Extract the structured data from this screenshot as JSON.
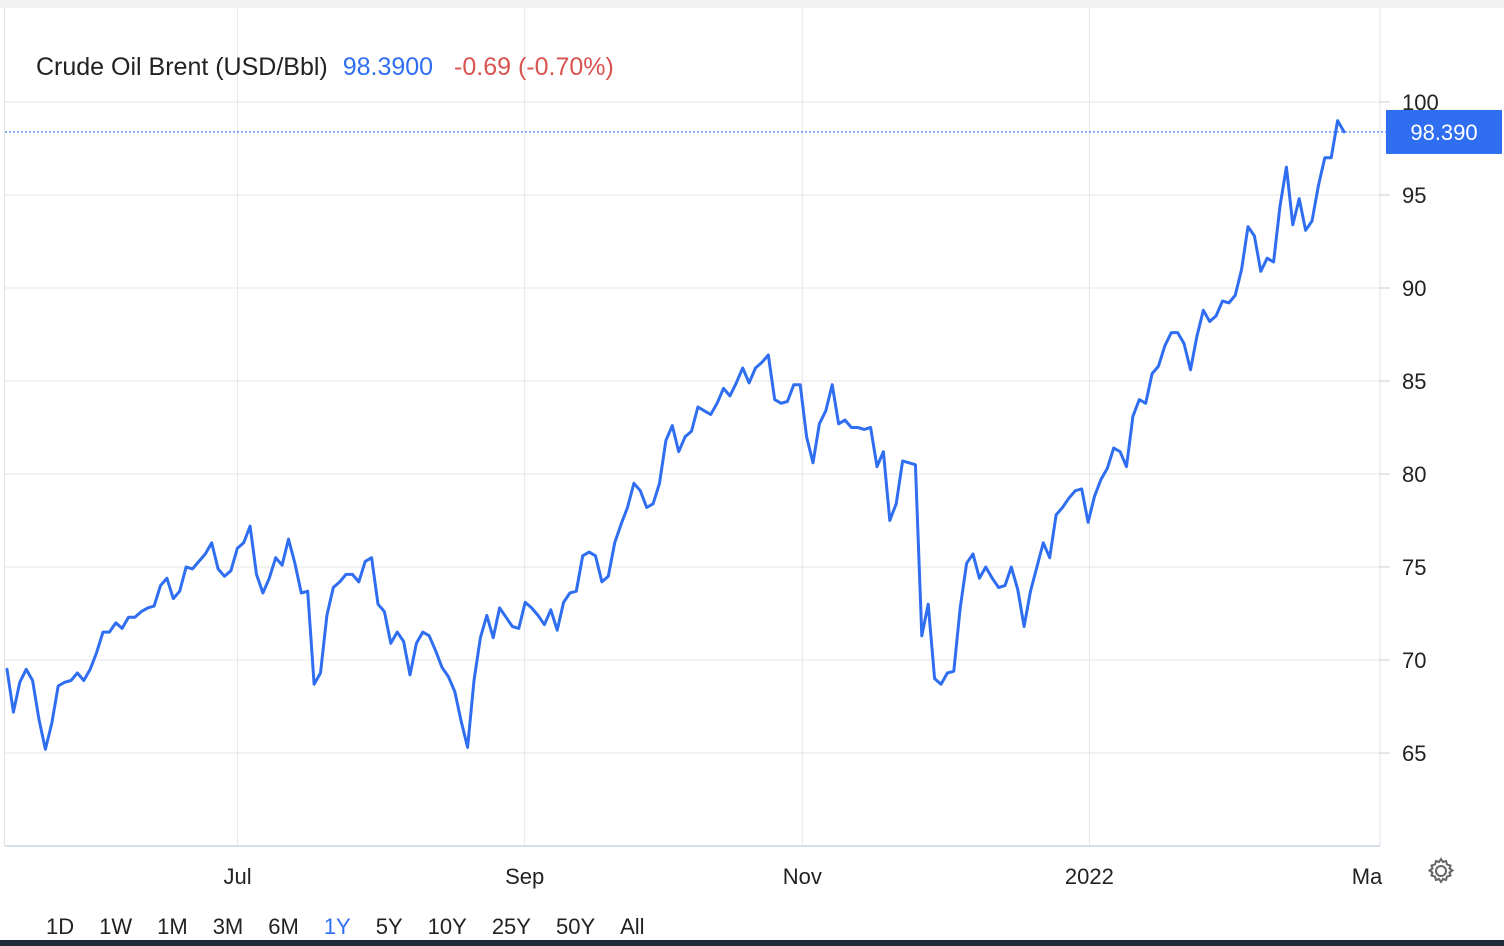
{
  "header": {
    "instrument": "Crude Oil Brent (USD/Bbl)",
    "price": "98.3900",
    "change": "-0.69 (-0.70%)"
  },
  "last_price_label": "98.390",
  "colors": {
    "line": "#2f6ef0",
    "price": "#2f6ef0",
    "change": "#d9534f",
    "badge": "#2f6ef0",
    "grid": "#e6e6e6"
  },
  "ranges": [
    "1D",
    "1W",
    "1M",
    "3M",
    "6M",
    "1Y",
    "5Y",
    "10Y",
    "25Y",
    "50Y",
    "All"
  ],
  "active_range": "1Y",
  "settings_icon": "gear-icon",
  "chart_data": {
    "type": "line",
    "title": "Crude Oil Brent (USD/Bbl)",
    "xlabel": "",
    "ylabel": "",
    "ylim": [
      60,
      102
    ],
    "xlim": [
      0,
      289
    ],
    "grid": true,
    "y_ticks": [
      65,
      70,
      75,
      80,
      85,
      90,
      95,
      100
    ],
    "x_ticks": [
      {
        "label": "Jul",
        "pos": 49
      },
      {
        "label": "Sep",
        "pos": 110
      },
      {
        "label": "Nov",
        "pos": 169
      },
      {
        "label": "2022",
        "pos": 230
      },
      {
        "label": "Ma",
        "pos": 289
      }
    ],
    "last_value": 98.39,
    "series": [
      {
        "values": [
          69.5,
          67.2,
          68.8,
          69.5,
          68.9,
          66.8,
          65.2,
          66.6,
          68.6,
          68.8,
          68.9,
          69.3,
          68.9,
          69.5,
          70.4,
          71.5,
          71.5,
          72.0,
          71.7,
          72.3,
          72.3,
          72.6,
          72.8,
          72.9,
          74.0,
          74.4,
          73.3,
          73.7,
          75.0,
          74.9,
          75.3,
          75.7,
          76.3,
          74.9,
          74.5,
          74.8,
          76.0,
          76.3,
          77.2,
          74.6,
          73.6,
          74.4,
          75.5,
          75.1,
          76.5,
          75.2,
          73.6,
          73.7,
          68.7,
          69.3,
          72.4,
          73.9,
          74.2,
          74.6,
          74.6,
          74.2,
          75.3,
          75.5,
          73.0,
          72.6,
          70.9,
          71.5,
          71.0,
          69.2,
          70.9,
          71.5,
          71.3,
          70.5,
          69.6,
          69.1,
          68.3,
          66.7,
          65.3,
          68.9,
          71.2,
          72.4,
          71.2,
          72.8,
          72.3,
          71.8,
          71.7,
          73.1,
          72.8,
          72.4,
          71.9,
          72.7,
          71.6,
          73.1,
          73.6,
          73.7,
          75.6,
          75.8,
          75.6,
          74.2,
          74.5,
          76.3,
          77.3,
          78.2,
          79.5,
          79.1,
          78.2,
          78.4,
          79.5,
          81.8,
          82.6,
          81.2,
          82.0,
          82.3,
          83.6,
          83.4,
          83.2,
          83.8,
          84.6,
          84.2,
          84.9,
          85.7,
          84.9,
          85.7,
          86.0,
          86.4,
          84.0,
          83.8,
          83.9,
          84.8,
          84.8,
          82.0,
          80.6,
          82.7,
          83.4,
          84.8,
          82.7,
          82.9,
          82.5,
          82.5,
          82.4,
          82.5,
          80.4,
          81.2,
          77.5,
          78.4,
          80.7,
          80.6,
          80.5,
          71.3,
          73.0,
          69.0,
          68.7,
          69.3,
          69.4,
          72.8,
          75.2,
          75.7,
          74.4,
          75.0,
          74.4,
          73.9,
          74.0,
          75.0,
          73.8,
          71.8,
          73.7,
          75.0,
          76.3,
          75.5,
          77.8,
          78.2,
          78.7,
          79.1,
          79.2,
          77.4,
          78.8,
          79.7,
          80.3,
          81.4,
          81.2,
          80.4,
          83.1,
          84.0,
          83.8,
          85.4,
          85.8,
          86.9,
          87.6,
          87.6,
          87.0,
          85.6,
          87.4,
          88.8,
          88.2,
          88.5,
          89.3,
          89.2,
          89.6,
          91.0,
          93.3,
          92.8,
          90.9,
          91.6,
          91.4,
          94.4,
          96.5,
          93.4,
          94.8,
          93.1,
          93.6,
          95.5,
          97.0,
          97.0,
          99.0,
          98.4
        ]
      }
    ]
  }
}
